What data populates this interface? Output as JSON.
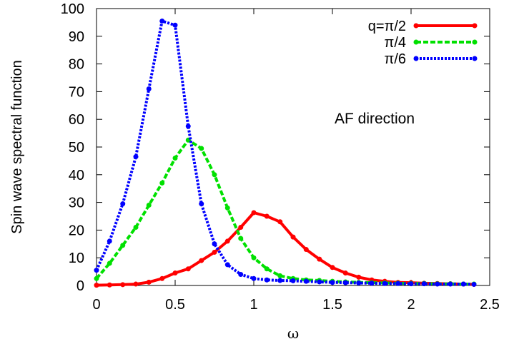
{
  "chart_data": {
    "type": "line",
    "title": "",
    "xlabel": "ω",
    "ylabel": "Spin wave spectral function",
    "xlim": [
      0,
      2.5
    ],
    "ylim": [
      0,
      100
    ],
    "xticks": [
      0,
      0.5,
      1,
      1.5,
      2,
      2.5
    ],
    "xtick_labels": [
      "0",
      "0.5",
      "1",
      "1.5",
      "2",
      "2.5"
    ],
    "yticks": [
      0,
      10,
      20,
      30,
      40,
      50,
      60,
      70,
      80,
      90,
      100
    ],
    "ytick_labels": [
      "0",
      "10",
      "20",
      "30",
      "40",
      "50",
      "60",
      "70",
      "80",
      "90",
      "100"
    ],
    "grid": false,
    "legend_position": "top-right",
    "annotation": "AF direction",
    "series": [
      {
        "name": "q=π/2",
        "color": "#ff0000",
        "style": "solid",
        "points": [
          [
            0,
            0.1
          ],
          [
            0.083,
            0.2
          ],
          [
            0.167,
            0.3
          ],
          [
            0.25,
            0.5
          ],
          [
            0.333,
            1.2
          ],
          [
            0.417,
            2.5
          ],
          [
            0.5,
            4.5
          ],
          [
            0.583,
            6
          ],
          [
            0.667,
            9
          ],
          [
            0.75,
            12
          ],
          [
            0.833,
            16
          ],
          [
            0.917,
            21
          ],
          [
            1.0,
            26.3
          ],
          [
            1.083,
            25
          ],
          [
            1.167,
            23
          ],
          [
            1.25,
            17.5
          ],
          [
            1.333,
            13
          ],
          [
            1.417,
            9.5
          ],
          [
            1.5,
            6.5
          ],
          [
            1.583,
            4.5
          ],
          [
            1.667,
            3
          ],
          [
            1.75,
            2
          ],
          [
            1.833,
            1.5
          ],
          [
            1.917,
            1.1
          ],
          [
            2.0,
            1
          ],
          [
            2.083,
            0.8
          ],
          [
            2.167,
            0.7
          ],
          [
            2.25,
            0.6
          ],
          [
            2.333,
            0.5
          ],
          [
            2.4,
            0.4
          ]
        ]
      },
      {
        "name": "π/4",
        "color": "#00e000",
        "style": "dashed",
        "points": [
          [
            0,
            2.5
          ],
          [
            0.083,
            8
          ],
          [
            0.167,
            14.5
          ],
          [
            0.25,
            21
          ],
          [
            0.333,
            29
          ],
          [
            0.417,
            37
          ],
          [
            0.5,
            46
          ],
          [
            0.583,
            52.5
          ],
          [
            0.667,
            49.5
          ],
          [
            0.75,
            40
          ],
          [
            0.833,
            28
          ],
          [
            0.917,
            17
          ],
          [
            1.0,
            10
          ],
          [
            1.083,
            6
          ],
          [
            1.167,
            3.5
          ],
          [
            1.25,
            2.5
          ],
          [
            1.333,
            2
          ],
          [
            1.417,
            1.8
          ],
          [
            1.5,
            1.5
          ],
          [
            1.583,
            1.3
          ],
          [
            1.667,
            1.1
          ],
          [
            1.75,
            1
          ],
          [
            1.833,
            0.9
          ],
          [
            1.917,
            0.8
          ],
          [
            2.0,
            0.7
          ],
          [
            2.083,
            0.7
          ],
          [
            2.167,
            0.6
          ],
          [
            2.25,
            0.6
          ],
          [
            2.333,
            0.5
          ],
          [
            2.4,
            0.5
          ]
        ]
      },
      {
        "name": "π/6",
        "color": "#0000ff",
        "style": "dotted",
        "points": [
          [
            0,
            5.5
          ],
          [
            0.083,
            16
          ],
          [
            0.167,
            29.5
          ],
          [
            0.25,
            46.5
          ],
          [
            0.333,
            71
          ],
          [
            0.417,
            95.5
          ],
          [
            0.5,
            94
          ],
          [
            0.583,
            57.5
          ],
          [
            0.667,
            29.5
          ],
          [
            0.75,
            15
          ],
          [
            0.833,
            7.5
          ],
          [
            0.917,
            4
          ],
          [
            1.0,
            2.5
          ],
          [
            1.083,
            2
          ],
          [
            1.167,
            1.8
          ],
          [
            1.25,
            1.7
          ],
          [
            1.333,
            1.5
          ],
          [
            1.417,
            1.3
          ],
          [
            1.5,
            1.1
          ],
          [
            1.583,
            1
          ],
          [
            1.667,
            0.9
          ],
          [
            1.75,
            0.8
          ],
          [
            1.833,
            0.7
          ],
          [
            1.917,
            0.7
          ],
          [
            2.0,
            0.6
          ],
          [
            2.083,
            0.6
          ],
          [
            2.167,
            0.5
          ],
          [
            2.25,
            0.5
          ],
          [
            2.333,
            0.5
          ],
          [
            2.4,
            0.4
          ]
        ]
      }
    ]
  }
}
